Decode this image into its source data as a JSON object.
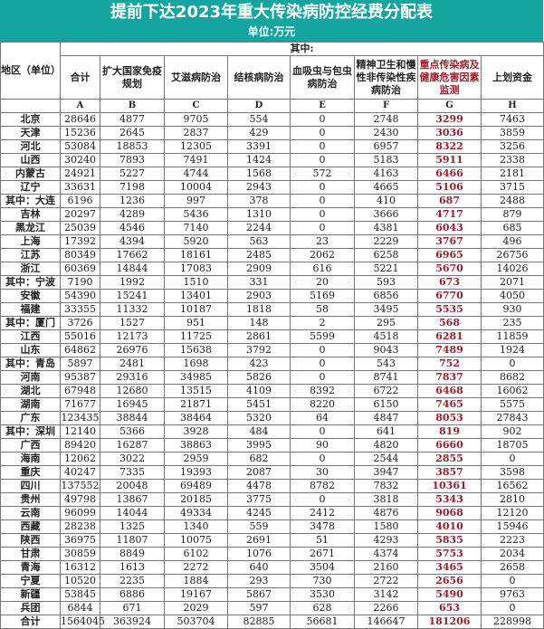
{
  "title": "提前下达2023年重大传染病防控经费分配表",
  "unit": "单位:万元",
  "colors": {
    "header_bg": "#14a59e",
    "highlight": "#a01c2a"
  },
  "header": {
    "region": "地区（单位）",
    "group": "其中:",
    "columns": [
      "合计",
      "扩大国家免疫规划",
      "艾滋病防治",
      "结核病防治",
      "血吸虫与包虫病防治",
      "精神卫生和慢性非传染性疾病防治",
      "重点传染病及健康危害因素监测",
      "上划资金"
    ],
    "letters": [
      "A",
      "B",
      "C",
      "D",
      "E",
      "F",
      "G",
      "H"
    ]
  },
  "rows": [
    [
      "北京",
      28646,
      4877,
      9705,
      554,
      0,
      2748,
      3299,
      7463
    ],
    [
      "天津",
      15236,
      2645,
      2837,
      429,
      0,
      2430,
      3036,
      3859
    ],
    [
      "河北",
      53084,
      18853,
      12305,
      3391,
      0,
      6957,
      8322,
      3256
    ],
    [
      "山西",
      30240,
      7893,
      7491,
      1424,
      0,
      5183,
      5911,
      2338
    ],
    [
      "内蒙古",
      24921,
      5227,
      4744,
      1568,
      572,
      4163,
      6466,
      2181
    ],
    [
      "辽宁",
      33631,
      7198,
      10004,
      2943,
      0,
      4665,
      5106,
      3715
    ],
    [
      "其中：大连",
      6196,
      1236,
      997,
      378,
      0,
      410,
      687,
      2488
    ],
    [
      "吉林",
      20297,
      4289,
      5436,
      1310,
      0,
      3666,
      4717,
      879
    ],
    [
      "黑龙江",
      25039,
      4546,
      7140,
      2244,
      0,
      4381,
      6043,
      685
    ],
    [
      "上海",
      17392,
      4394,
      5920,
      563,
      23,
      2229,
      3767,
      496
    ],
    [
      "江苏",
      80349,
      17662,
      18161,
      2485,
      2062,
      6258,
      6965,
      26756
    ],
    [
      "浙江",
      60369,
      14844,
      17083,
      2909,
      616,
      5221,
      5670,
      14026
    ],
    [
      "其中：宁波",
      7190,
      1992,
      1510,
      331,
      20,
      593,
      673,
      2071
    ],
    [
      "安徽",
      54390,
      15241,
      13401,
      2903,
      5169,
      6856,
      6770,
      4050
    ],
    [
      "福建",
      33355,
      11332,
      10187,
      1818,
      58,
      3495,
      5535,
      930
    ],
    [
      "其中：厦门",
      3726,
      1527,
      951,
      148,
      2,
      295,
      568,
      235
    ],
    [
      "江西",
      55016,
      12173,
      11725,
      2861,
      5599,
      4518,
      6281,
      11859
    ],
    [
      "山东",
      64862,
      26976,
      15638,
      3792,
      0,
      9043,
      7489,
      1924
    ],
    [
      "其中：青岛",
      5897,
      2481,
      1698,
      423,
      0,
      543,
      752,
      0
    ],
    [
      "河南",
      95387,
      29316,
      34985,
      5826,
      0,
      8741,
      7837,
      8682
    ],
    [
      "湖北",
      67948,
      12680,
      13515,
      4109,
      8392,
      6722,
      6468,
      16062
    ],
    [
      "湖南",
      71677,
      16945,
      21871,
      5451,
      8220,
      6150,
      7465,
      5575
    ],
    [
      "广东",
      123435,
      38844,
      38464,
      5320,
      64,
      4847,
      8053,
      27843
    ],
    [
      "其中：深圳",
      12140,
      5366,
      3928,
      484,
      0,
      641,
      819,
      902
    ],
    [
      "广西",
      89420,
      16287,
      38863,
      3995,
      90,
      4820,
      6660,
      18705
    ],
    [
      "海南",
      12062,
      3022,
      2959,
      682,
      0,
      2544,
      2855,
      0
    ],
    [
      "重庆",
      40247,
      7335,
      19393,
      2087,
      30,
      3947,
      3857,
      3598
    ],
    [
      "四川",
      137552,
      20048,
      69489,
      4478,
      8782,
      7832,
      10361,
      16562
    ],
    [
      "贵州",
      49798,
      13867,
      20185,
      3775,
      0,
      3818,
      5343,
      2810
    ],
    [
      "云南",
      96099,
      14044,
      49334,
      4245,
      2412,
      4876,
      9068,
      12120
    ],
    [
      "西藏",
      28238,
      1325,
      1340,
      559,
      3478,
      1580,
      4010,
      15946
    ],
    [
      "陕西",
      36975,
      11807,
      10075,
      2691,
      51,
      4293,
      5835,
      2223
    ],
    [
      "甘肃",
      30859,
      8849,
      6102,
      1076,
      2671,
      4374,
      5753,
      2034
    ],
    [
      "青海",
      16312,
      1613,
      2272,
      640,
      3504,
      2160,
      3465,
      2658
    ],
    [
      "宁夏",
      10520,
      2235,
      1884,
      293,
      730,
      2722,
      2656,
      0
    ],
    [
      "新疆",
      53845,
      6886,
      19167,
      5867,
      3530,
      3142,
      5490,
      9763
    ],
    [
      "兵团",
      6844,
      671,
      2029,
      597,
      628,
      2266,
      653,
      0
    ],
    [
      "合计",
      1564045,
      363924,
      503704,
      82885,
      56681,
      146647,
      181206,
      228998
    ]
  ]
}
